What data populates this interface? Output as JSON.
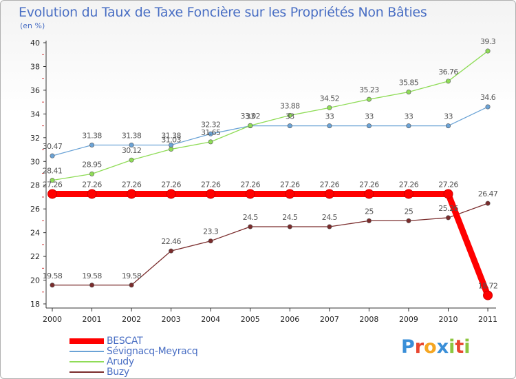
{
  "header": {
    "title": "Evolution du Taux de Taxe Foncière sur les Propriétés Non Bâties",
    "unit": "(en %)"
  },
  "chart_data": {
    "type": "line",
    "title": "Evolution du Taux de Taxe Foncière sur les Propriétés Non Bâties",
    "ylabel": "(en %)",
    "xlabel": "",
    "x": [
      "2000",
      "2001",
      "2002",
      "2003",
      "2004",
      "2005",
      "2006",
      "2007",
      "2008",
      "2009",
      "2010",
      "2011"
    ],
    "ylim": [
      18,
      40
    ],
    "yticks": [
      18,
      20,
      22,
      24,
      26,
      28,
      30,
      32,
      34,
      36,
      38,
      40
    ],
    "grid": false,
    "legend_position": "bottom-left",
    "series": [
      {
        "name": "BESCAT",
        "color": "#ff0000",
        "values": [
          27.26,
          27.26,
          27.26,
          27.26,
          27.26,
          27.26,
          27.26,
          27.26,
          27.26,
          27.26,
          27.26,
          18.72
        ],
        "labels": [
          "27.26",
          "27.26",
          "27.26",
          "27.26",
          "27.26",
          "27.26",
          "27.26",
          "27.26",
          "27.26",
          "27.26",
          "27.26",
          "18.72"
        ]
      },
      {
        "name": "Sévignacq-Meyracq",
        "color": "#6ba3d6",
        "values": [
          30.47,
          31.38,
          31.38,
          31.38,
          32.32,
          33,
          33,
          33,
          33,
          33,
          33,
          34.6
        ],
        "labels": [
          "30.47",
          "31.38",
          "31.38",
          "31.38",
          "32.32",
          "33",
          "33",
          "33",
          "33",
          "33",
          "33",
          "34.6"
        ]
      },
      {
        "name": "Arudy",
        "color": "#8fdc57",
        "values": [
          28.41,
          28.95,
          30.12,
          31.03,
          31.65,
          33.02,
          33.88,
          34.52,
          35.23,
          35.85,
          36.76,
          39.3
        ],
        "labels": [
          "28.41",
          "28.95",
          "30.12",
          "31.03",
          "31.65",
          "33.02",
          "33.88",
          "34.52",
          "35.23",
          "35.85",
          "36.76",
          "39.3"
        ]
      },
      {
        "name": "Buzy",
        "color": "#7a2c2c",
        "values": [
          19.58,
          19.58,
          19.58,
          22.46,
          23.3,
          24.5,
          24.5,
          24.5,
          25,
          25,
          25.26,
          26.47
        ],
        "labels": [
          "19.58",
          "19.58",
          "19.58",
          "22.46",
          "23.3",
          "24.5",
          "24.5",
          "24.5",
          "25",
          "25",
          "25.26",
          "26.47"
        ]
      }
    ]
  },
  "logo": {
    "text": "Proxiti"
  }
}
